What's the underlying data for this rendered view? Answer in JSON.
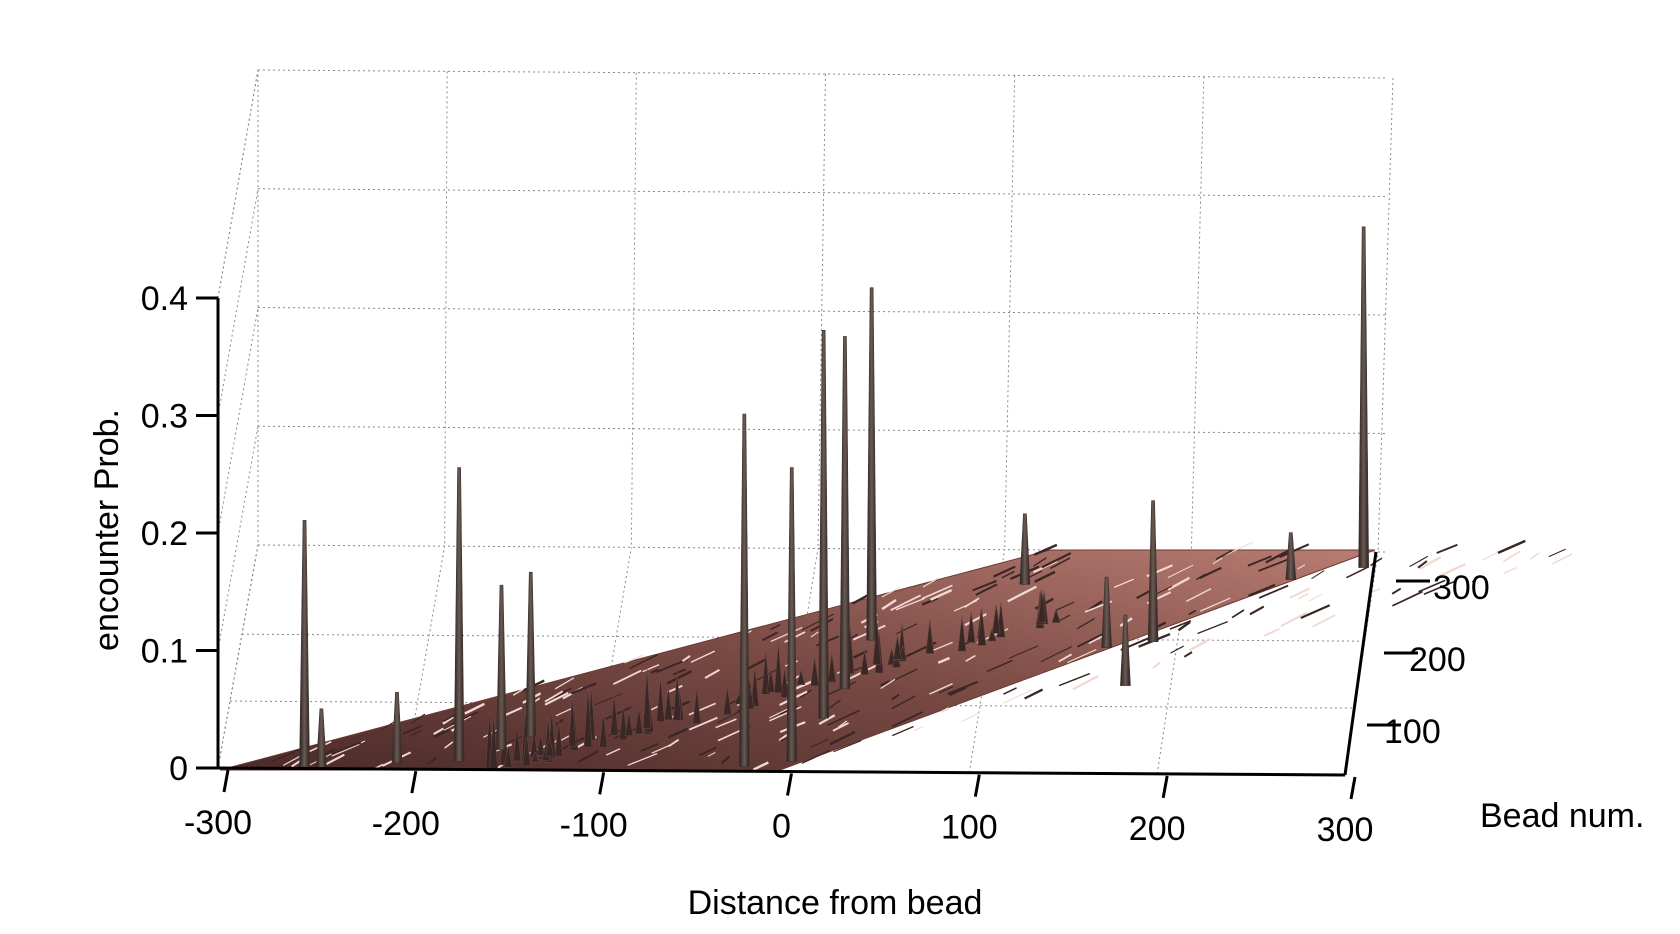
{
  "chart_data": {
    "type": "surface3d",
    "title": "",
    "xlabel": "Distance from bead",
    "ylabel": "Bead num.",
    "zlabel": "encounter Prob.",
    "xlim": [
      -300,
      300
    ],
    "ylim": [
      0,
      350
    ],
    "zlim": [
      0,
      0.4
    ],
    "x_ticks": [
      "-300",
      "-200",
      "-100",
      "0",
      "100",
      "200",
      "300"
    ],
    "y_ticks": [
      "100",
      "200",
      "300"
    ],
    "z_ticks": [
      "0",
      "0.1",
      "0.2",
      "0.3",
      "0.4"
    ],
    "grid": true,
    "colors": {
      "surface": "#6b3a36",
      "surface_light": "#c98f86",
      "peak": "#3a3230"
    },
    "peaks": [
      {
        "x": -254,
        "y": 20,
        "z": 0.21
      },
      {
        "x": -245,
        "y": 12,
        "z": 0.05
      },
      {
        "x": -205,
        "y": 40,
        "z": 0.06
      },
      {
        "x": -172,
        "y": 38,
        "z": 0.25
      },
      {
        "x": -150,
        "y": 80,
        "z": 0.14
      },
      {
        "x": -135,
        "y": 120,
        "z": 0.14
      },
      {
        "x": -20,
        "y": 10,
        "z": 0.3
      },
      {
        "x": 5,
        "y": 20,
        "z": 0.25
      },
      {
        "x": 20,
        "y": 100,
        "z": 0.33
      },
      {
        "x": 30,
        "y": 150,
        "z": 0.3
      },
      {
        "x": 42,
        "y": 230,
        "z": 0.3
      },
      {
        "x": 120,
        "y": 300,
        "z": 0.06
      },
      {
        "x": 166,
        "y": 200,
        "z": 0.06
      },
      {
        "x": 178,
        "y": 140,
        "z": 0.06
      },
      {
        "x": 190,
        "y": 210,
        "z": 0.12
      },
      {
        "x": 258,
        "y": 310,
        "z": 0.04
      },
      {
        "x": 295,
        "y": 330,
        "z": 0.29
      }
    ]
  }
}
